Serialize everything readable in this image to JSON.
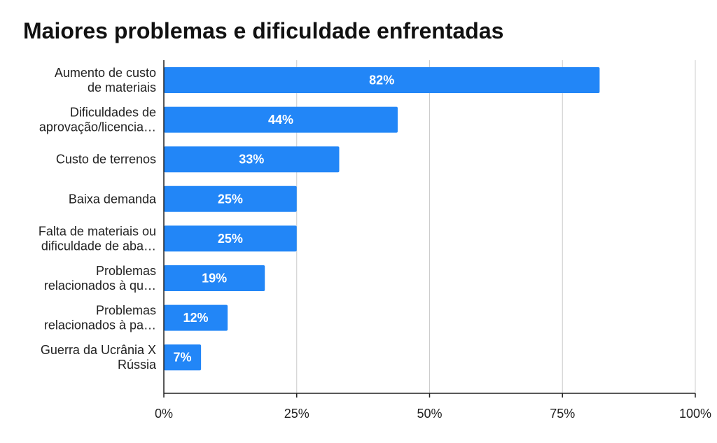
{
  "chart_data": {
    "type": "bar",
    "orientation": "horizontal",
    "title": "Maiores problemas e dificuldade enfrentadas",
    "categories": [
      [
        "Aumento de custo",
        "de materiais"
      ],
      [
        "Dificuldades de",
        "aprovação/licencia…"
      ],
      [
        "Custo de terrenos"
      ],
      [
        "Baixa demanda"
      ],
      [
        "Falta de materiais ou",
        "dificuldade de aba…"
      ],
      [
        "Problemas",
        "relacionados à qu…"
      ],
      [
        "Problemas",
        "relacionados à pa…"
      ],
      [
        "Guerra da Ucrânia X",
        "Rússia"
      ]
    ],
    "values": [
      82,
      44,
      33,
      25,
      25,
      19,
      12,
      7
    ],
    "value_labels": [
      "82%",
      "44%",
      "33%",
      "25%",
      "25%",
      "19%",
      "12%",
      "7%"
    ],
    "xlim": [
      0,
      100
    ],
    "x_ticks": [
      0,
      25,
      50,
      75,
      100
    ],
    "x_tick_labels": [
      "0%",
      "25%",
      "50%",
      "75%",
      "100%"
    ],
    "grid": true,
    "legend": "none",
    "bar_color": "#2286f7",
    "xlabel": "",
    "ylabel": ""
  }
}
